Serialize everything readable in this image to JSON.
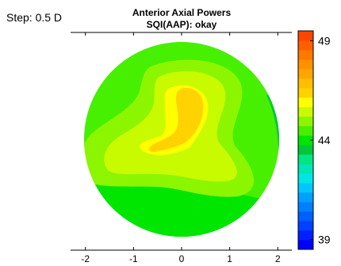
{
  "step_label": "Step: 0.5 D",
  "chart_data": {
    "type": "heatmap",
    "title": "Anterior Axial Powers",
    "subtitle": "SQI(AAP): okay",
    "xlabel": "",
    "ylabel": "",
    "x_ticks": [
      "-2",
      "-1",
      "0",
      "1",
      "2"
    ],
    "x_tick_values": [
      -2,
      -1,
      0,
      1,
      2
    ],
    "xlim": [
      -2.3,
      2.3
    ],
    "colorbar": {
      "range": [
        38.5,
        49.5
      ],
      "step": 0.5,
      "ticks": [
        "49",
        "44",
        "39"
      ],
      "tick_values": [
        49,
        44,
        39
      ],
      "colors": [
        "#0000ff",
        "#0020ff",
        "#0040ff",
        "#0060ff",
        "#0080ff",
        "#00a0ff",
        "#00c8ff",
        "#00e6e6",
        "#00e6b4",
        "#00e682",
        "#00c837",
        "#00e600",
        "#46f000",
        "#8cf500",
        "#c8fa00",
        "#ffff00",
        "#ffd200",
        "#ffbe00",
        "#ffa500",
        "#ff9100",
        "#ff7800",
        "#ff5f00",
        "#ff4600"
      ]
    },
    "map_levels": {
      "outer": 45,
      "band": 45.5,
      "main": 46,
      "inner": 46.5,
      "peak": 47,
      "lower": 44.5,
      "low": 44,
      "lowest": 43.5
    },
    "grid": false,
    "legend": "colorbar-right"
  },
  "colors": {
    "axis": "#000000",
    "background": "#ffffff"
  }
}
